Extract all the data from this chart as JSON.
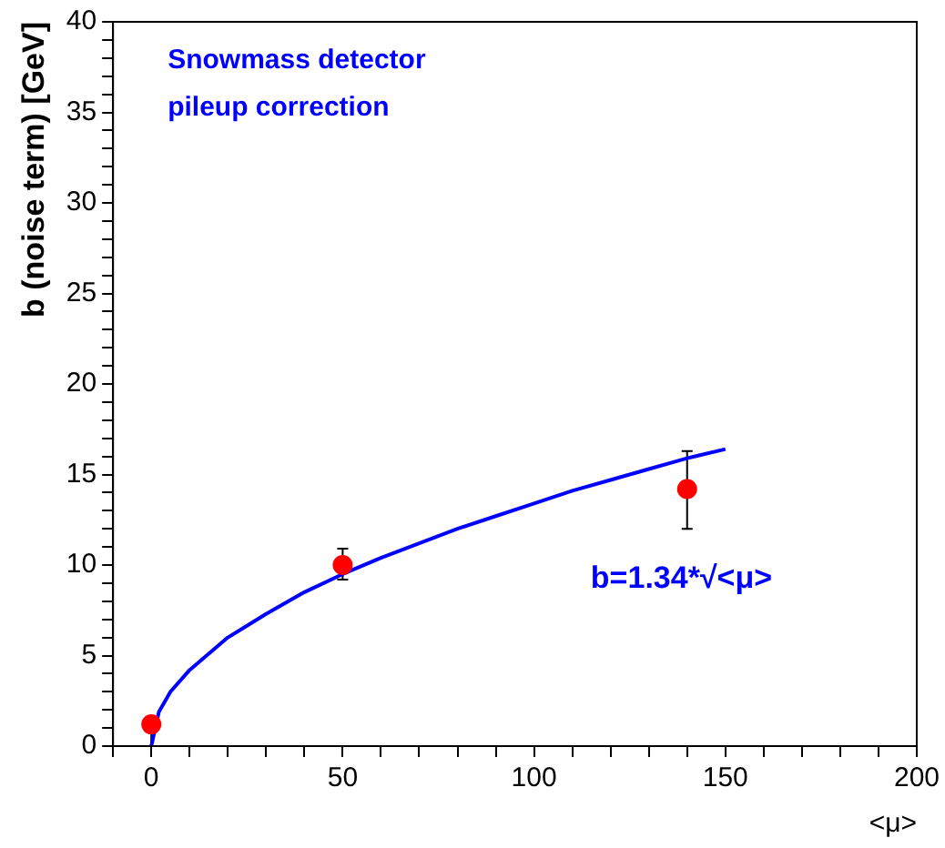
{
  "chart_data": {
    "type": "scatter",
    "xlabel": "<μ>",
    "ylabel": "b (noise term) [GeV]",
    "annotations": [
      "Snowmass detector",
      "pileup correction",
      "b=1.34*√<μ>"
    ],
    "xlim": [
      -10,
      200
    ],
    "ylim": [
      0,
      40
    ],
    "xticks": [
      {
        "value": -10,
        "label": null
      },
      0,
      {
        "value": 10,
        "label": null
      },
      {
        "value": 20,
        "label": null
      },
      {
        "value": 30,
        "label": null
      },
      {
        "value": 40,
        "label": null
      },
      50,
      {
        "value": 60,
        "label": null
      },
      {
        "value": 70,
        "label": null
      },
      {
        "value": 80,
        "label": null
      },
      {
        "value": 90,
        "label": null
      },
      100,
      {
        "value": 110,
        "label": null
      },
      {
        "value": 120,
        "label": null
      },
      {
        "value": 130,
        "label": null
      },
      {
        "value": 140,
        "label": null
      },
      150,
      {
        "value": 160,
        "label": null
      },
      {
        "value": 170,
        "label": null
      },
      {
        "value": 180,
        "label": null
      },
      {
        "value": 190,
        "label": null
      },
      200
    ],
    "yticks": [
      0,
      {
        "value": 1,
        "label": null
      },
      {
        "value": 2,
        "label": null
      },
      {
        "value": 3,
        "label": null
      },
      {
        "value": 4,
        "label": null
      },
      5,
      {
        "value": 6,
        "label": null
      },
      {
        "value": 7,
        "label": null
      },
      {
        "value": 8,
        "label": null
      },
      {
        "value": 9,
        "label": null
      },
      10,
      {
        "value": 11,
        "label": null
      },
      {
        "value": 12,
        "label": null
      },
      {
        "value": 13,
        "label": null
      },
      {
        "value": 14,
        "label": null
      },
      15,
      {
        "value": 16,
        "label": null
      },
      {
        "value": 17,
        "label": null
      },
      {
        "value": 18,
        "label": null
      },
      {
        "value": 19,
        "label": null
      },
      20,
      {
        "value": 21,
        "label": null
      },
      {
        "value": 22,
        "label": null
      },
      {
        "value": 23,
        "label": null
      },
      {
        "value": 24,
        "label": null
      },
      25,
      {
        "value": 26,
        "label": null
      },
      {
        "value": 27,
        "label": null
      },
      {
        "value": 28,
        "label": null
      },
      {
        "value": 29,
        "label": null
      },
      30,
      {
        "value": 31,
        "label": null
      },
      {
        "value": 32,
        "label": null
      },
      {
        "value": 33,
        "label": null
      },
      {
        "value": 34,
        "label": null
      },
      35,
      {
        "value": 36,
        "label": null
      },
      {
        "value": 37,
        "label": null
      },
      {
        "value": 38,
        "label": null
      },
      {
        "value": 39,
        "label": null
      },
      40
    ],
    "grid": false,
    "legend": false,
    "marker": "circle",
    "series": [
      {
        "type": "line",
        "color": "#0000ff",
        "marker": "none",
        "x": [
          0,
          2,
          5,
          10,
          20,
          30,
          40,
          50,
          60,
          70,
          80,
          90,
          100,
          110,
          120,
          130,
          140,
          150
        ],
        "values": [
          0,
          1.9,
          3.0,
          4.2,
          6.0,
          7.3,
          8.5,
          9.5,
          10.4,
          11.2,
          12.0,
          12.7,
          13.4,
          14.1,
          14.7,
          15.3,
          15.9,
          16.4
        ]
      },
      {
        "color": "#ff0000",
        "x": [
          0,
          50,
          140
        ],
        "values": [
          1.2,
          10.0,
          14.2
        ],
        "errors": [
          [
            0,
            1.5
          ],
          [
            9.2,
            10.9
          ],
          [
            12.0,
            16.3
          ]
        ]
      }
    ]
  }
}
